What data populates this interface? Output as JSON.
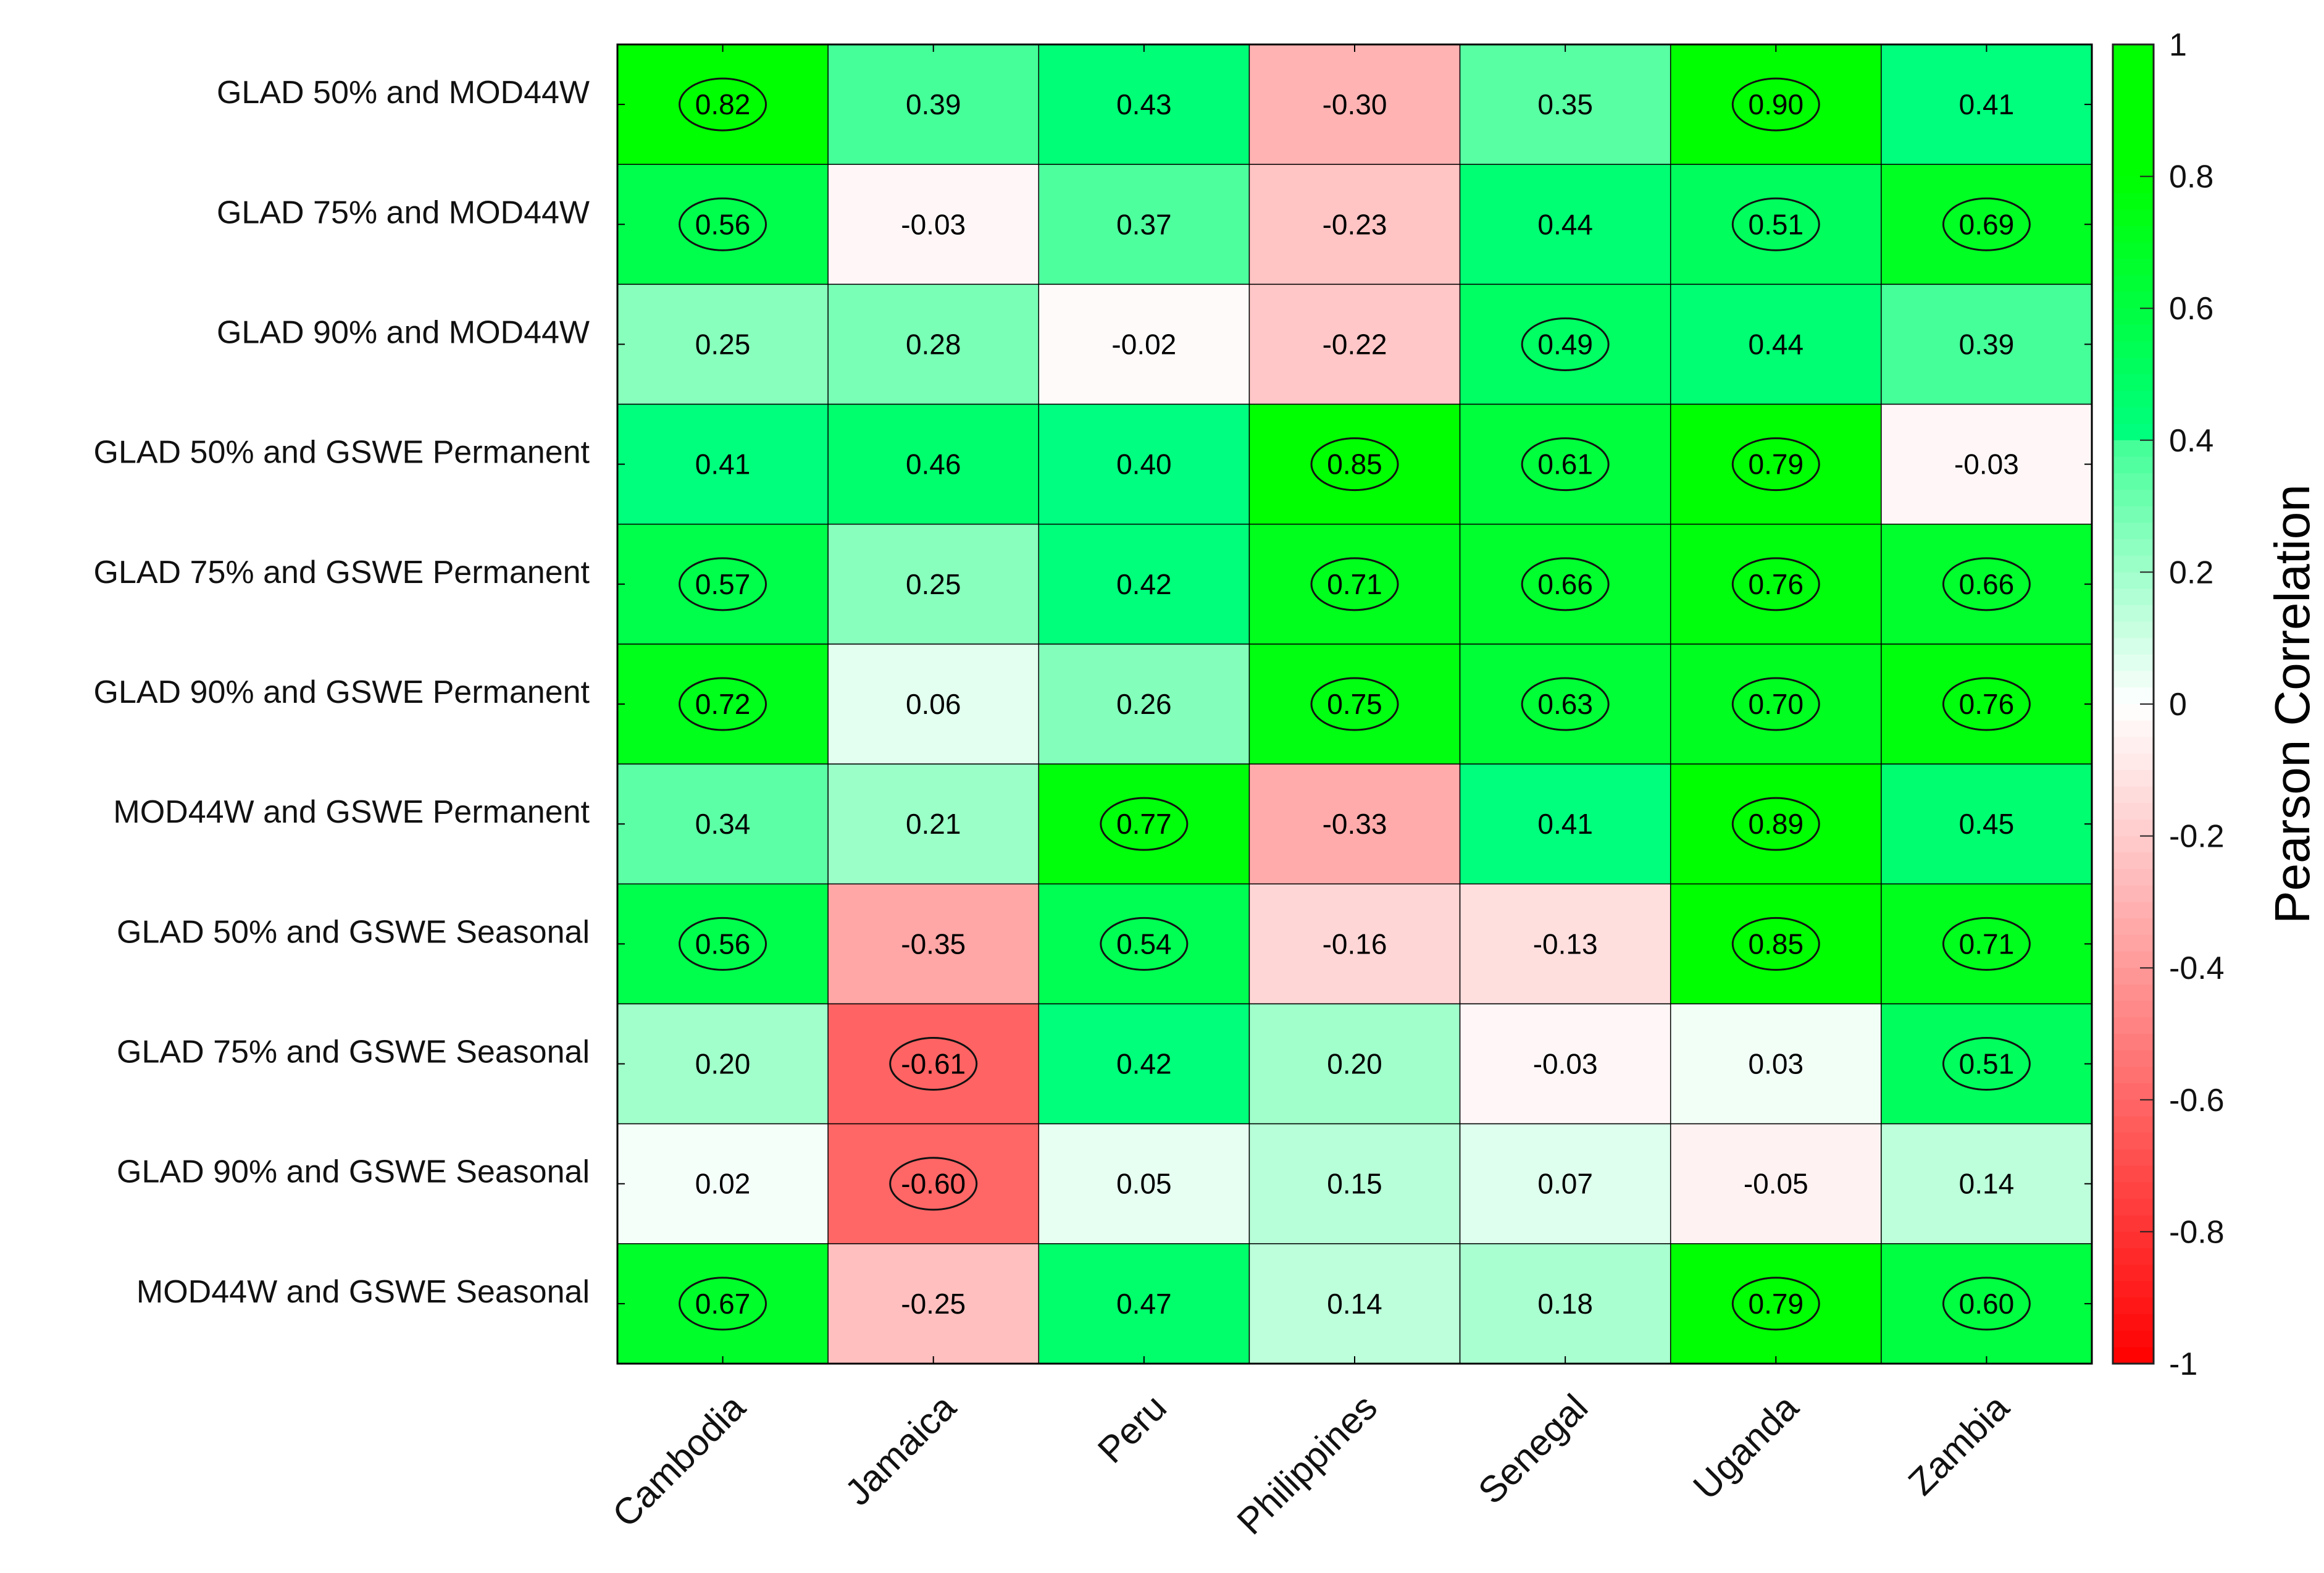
{
  "chart_data": {
    "type": "heatmap",
    "title": "",
    "xlabel": "",
    "ylabel": "",
    "columns": [
      "Cambodia",
      "Jamaica",
      "Peru",
      "Philippines",
      "Senegal",
      "Uganda",
      "Zambia"
    ],
    "rows": [
      "GLAD 50% and MOD44W",
      "GLAD 75% and MOD44W",
      "GLAD 90% and MOD44W",
      "GLAD 50% and GSWE Permanent",
      "GLAD 75% and GSWE Permanent",
      "GLAD 90% and GSWE Permanent",
      "MOD44W and GSWE Permanent",
      "GLAD 50% and GSWE Seasonal",
      "GLAD 75% and GSWE Seasonal",
      "GLAD 90% and GSWE Seasonal",
      "MOD44W and GSWE Seasonal"
    ],
    "values": [
      [
        "0.82",
        "0.39",
        "0.43",
        "-0.30",
        "0.35",
        "0.90",
        "0.41"
      ],
      [
        "0.56",
        "-0.03",
        "0.37",
        "-0.23",
        "0.44",
        "0.51",
        "0.69"
      ],
      [
        "0.25",
        "0.28",
        "-0.02",
        "-0.22",
        "0.49",
        "0.44",
        "0.39"
      ],
      [
        "0.41",
        "0.46",
        "0.40",
        "0.85",
        "0.61",
        "0.79",
        "-0.03"
      ],
      [
        "0.57",
        "0.25",
        "0.42",
        "0.71",
        "0.66",
        "0.76",
        "0.66"
      ],
      [
        "0.72",
        "0.06",
        "0.26",
        "0.75",
        "0.63",
        "0.70",
        "0.76"
      ],
      [
        "0.34",
        "0.21",
        "0.77",
        "-0.33",
        "0.41",
        "0.89",
        "0.45"
      ],
      [
        "0.56",
        "-0.35",
        "0.54",
        "-0.16",
        "-0.13",
        "0.85",
        "0.71"
      ],
      [
        "0.20",
        "-0.61",
        "0.42",
        "0.20",
        "-0.03",
        "0.03",
        "0.51"
      ],
      [
        "0.02",
        "-0.60",
        "0.05",
        "0.15",
        "0.07",
        "-0.05",
        "0.14"
      ],
      [
        "0.67",
        "-0.25",
        "0.47",
        "0.14",
        "0.18",
        "0.79",
        "0.60"
      ]
    ],
    "circled": [
      [
        1,
        0,
        0,
        0,
        0,
        1,
        0
      ],
      [
        1,
        0,
        0,
        0,
        0,
        1,
        1
      ],
      [
        0,
        0,
        0,
        0,
        1,
        0,
        0
      ],
      [
        0,
        0,
        0,
        1,
        1,
        1,
        0
      ],
      [
        1,
        0,
        0,
        1,
        1,
        1,
        1
      ],
      [
        1,
        0,
        0,
        1,
        1,
        1,
        1
      ],
      [
        0,
        0,
        1,
        0,
        0,
        1,
        0
      ],
      [
        1,
        0,
        1,
        0,
        0,
        1,
        1
      ],
      [
        0,
        1,
        0,
        0,
        0,
        0,
        1
      ],
      [
        0,
        1,
        0,
        0,
        0,
        0,
        0
      ],
      [
        1,
        0,
        0,
        0,
        0,
        1,
        1
      ]
    ],
    "colorbar": {
      "label": "Pearson Correlation",
      "range": [
        -1,
        1
      ],
      "ticks": [
        "1",
        "0.8",
        "0.6",
        "0.4",
        "0.2",
        "0",
        "-0.2",
        "-0.4",
        "-0.6",
        "-0.8",
        "-1"
      ],
      "colors": {
        "negative_end": "#ff0000",
        "zero": "#ffffff",
        "low_positive": "#40ff99",
        "mid_positive": "#00ff80",
        "positive_end": "#00ff00"
      }
    }
  }
}
